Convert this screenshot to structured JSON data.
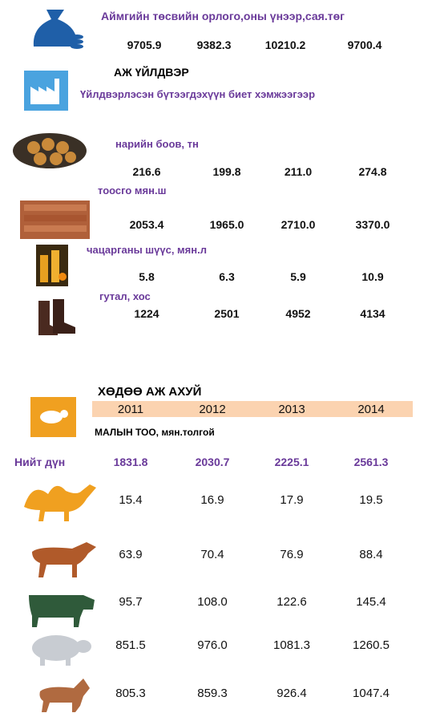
{
  "budget": {
    "title": "Аймгийн төсвийн орлого,оны үнээр,сая.төг",
    "values": [
      "9705.9",
      "9382.3",
      "10210.2",
      "9700.4"
    ]
  },
  "industry": {
    "heading": "АЖ ҮЙЛДВЭР",
    "subtitle": "Үйлдвэрлэсэн бүтээгдэхүүн биет хэмжээгээр",
    "items": [
      {
        "label": "нарийн боов, тн",
        "values": [
          "216.6",
          "199.8",
          "211.0",
          "274.8"
        ]
      },
      {
        "label": "тоосго мян.ш",
        "values": [
          "2053.4",
          "1965.0",
          "2710.0",
          "3370.0"
        ]
      },
      {
        "label": "чацарганы шүүс, мян.л",
        "values": [
          "5.8",
          "6.3",
          "5.9",
          "10.9"
        ]
      },
      {
        "label": "гутал, хос",
        "values": [
          "1224",
          "2501",
          "4952",
          "4134"
        ]
      }
    ]
  },
  "agriculture": {
    "heading": "ХӨДӨӨ АЖ АХУЙ",
    "years": [
      "2011",
      "2012",
      "2013",
      "2014"
    ],
    "subtitle": "МАЛЫН ТОО, мян.толгой",
    "total_label": "Нийт дүн",
    "total_values": [
      "1831.8",
      "2030.7",
      "2225.1",
      "2561.3"
    ],
    "animals": [
      [
        "15.4",
        "16.9",
        "17.9",
        "19.5"
      ],
      [
        "63.9",
        "70.4",
        "76.9",
        "88.4"
      ],
      [
        "95.7",
        "108.0",
        "122.6",
        "145.4"
      ],
      [
        "851.5",
        "976.0",
        "1081.3",
        "1260.5"
      ],
      [
        "805.3",
        "859.3",
        "926.4",
        "1047.4"
      ]
    ]
  }
}
